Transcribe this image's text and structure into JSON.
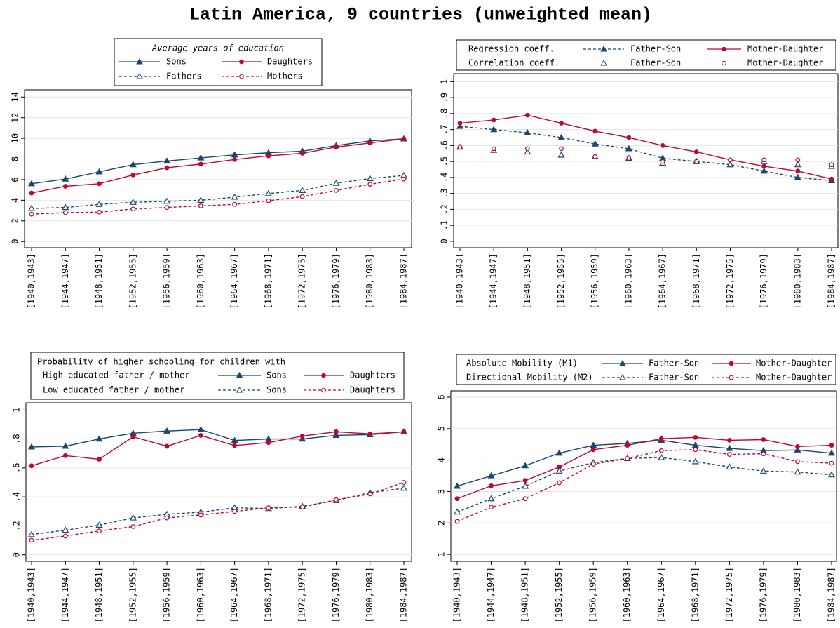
{
  "title": "Latin America, 9 countries (unweighted mean)",
  "chart_data": [
    {
      "type": "line",
      "legend_title": "Average years of education",
      "categories": [
        "[1940,1943]",
        "[1944,1947]",
        "[1948,1951]",
        "[1952,1955]",
        "[1956,1959]",
        "[1960,1963]",
        "[1964,1967]",
        "[1968,1971]",
        "[1972,1975]",
        "[1976,1979]",
        "[1980,1983]",
        "[1984,1987]"
      ],
      "ylim": [
        -0.6,
        14.7
      ],
      "yticks": [
        0,
        2,
        4,
        6,
        8,
        10,
        12,
        14
      ],
      "grid": true,
      "series": [
        {
          "name": "Sons",
          "color": "#1a476f",
          "dash": false,
          "line": true,
          "marker": "triangle",
          "filled": true,
          "values": [
            5.6,
            6.05,
            6.75,
            7.45,
            7.8,
            8.1,
            8.4,
            8.6,
            8.75,
            9.3,
            9.75,
            9.95
          ]
        },
        {
          "name": "Daughters",
          "color": "#c10534",
          "dash": false,
          "line": true,
          "marker": "circle",
          "filled": true,
          "values": [
            4.7,
            5.35,
            5.6,
            6.45,
            7.15,
            7.5,
            7.95,
            8.3,
            8.55,
            9.15,
            9.55,
            9.95
          ]
        },
        {
          "name": "Fathers",
          "color": "#1a476f",
          "dash": true,
          "line": true,
          "marker": "triangle",
          "filled": false,
          "values": [
            3.2,
            3.3,
            3.6,
            3.8,
            3.9,
            4.0,
            4.3,
            4.65,
            4.95,
            5.65,
            6.1,
            6.4
          ]
        },
        {
          "name": "Mothers",
          "color": "#c10534",
          "dash": true,
          "line": true,
          "marker": "circle",
          "filled": false,
          "values": [
            2.65,
            2.8,
            2.85,
            3.15,
            3.3,
            3.45,
            3.6,
            3.95,
            4.35,
            4.95,
            5.55,
            6.05
          ]
        }
      ]
    },
    {
      "type": "line",
      "legend_row_labels": [
        "Regression coeff.",
        "Correlation coeff."
      ],
      "categories": [
        "[1940,1943]",
        "[1944,1947]",
        "[1948,1951]",
        "[1952,1955]",
        "[1956,1959]",
        "[1960,1963]",
        "[1964,1967]",
        "[1968,1971]",
        "[1972,1975]",
        "[1976,1979]",
        "[1980,1983]",
        "[1984,1987]"
      ],
      "ylim": [
        -0.04,
        1.05
      ],
      "yticks": [
        0,
        {
          "value": 0.1,
          "label": ".1"
        },
        {
          "value": 0.2,
          "label": ".2"
        },
        {
          "value": 0.3,
          "label": ".3"
        },
        {
          "value": 0.4,
          "label": ".4"
        },
        {
          "value": 0.5,
          "label": ".5"
        },
        {
          "value": 0.6,
          "label": ".6"
        },
        {
          "value": 0.7,
          "label": ".7"
        },
        {
          "value": 0.8,
          "label": ".8"
        },
        {
          "value": 0.9,
          "label": ".9"
        },
        1
      ],
      "grid": true,
      "series": [
        {
          "name": "Father-Son",
          "color": "#1a476f",
          "dash": true,
          "line": true,
          "marker": "triangle",
          "filled": true,
          "values": [
            0.72,
            0.7,
            0.68,
            0.65,
            0.61,
            0.58,
            0.52,
            0.5,
            0.48,
            0.44,
            0.4,
            0.38
          ]
        },
        {
          "name": "Mother-Daughter",
          "color": "#c10534",
          "dash": false,
          "line": true,
          "marker": "circle",
          "filled": true,
          "values": [
            0.74,
            0.76,
            0.79,
            0.74,
            0.69,
            0.65,
            0.6,
            0.56,
            0.51,
            0.47,
            0.44,
            0.39
          ]
        },
        {
          "name": "Father-Son",
          "color": "#1a476f",
          "dash": false,
          "line": false,
          "marker": "triangle",
          "filled": false,
          "values": [
            0.59,
            0.57,
            0.56,
            0.54,
            0.53,
            0.52,
            0.49,
            0.5,
            0.48,
            0.5,
            0.48,
            0.47
          ]
        },
        {
          "name": "Mother-Daughter",
          "color": "#c10534",
          "dash": false,
          "line": false,
          "marker": "circle",
          "filled": false,
          "values": [
            0.59,
            0.58,
            0.58,
            0.58,
            0.53,
            0.52,
            0.5,
            0.5,
            0.51,
            0.51,
            0.51,
            0.48
          ]
        }
      ]
    },
    {
      "type": "line",
      "legend_title": "Probability of higher schooling for children with",
      "legend_row_labels": [
        "High educated father / mother",
        "Low educated father / mother"
      ],
      "categories": [
        "[1940,1943]",
        "[1944,1947]",
        "[1948,1951]",
        "[1952,1955]",
        "[1956,1959]",
        "[1960,1963]",
        "[1964,1967]",
        "[1968,1971]",
        "[1972,1975]",
        "[1976,1979]",
        "[1980,1983]",
        "[1984,1987]"
      ],
      "ylim": [
        -0.045,
        1.05
      ],
      "yticks": [
        0,
        {
          "value": 0.2,
          "label": ".2"
        },
        {
          "value": 0.4,
          "label": ".4"
        },
        {
          "value": 0.6,
          "label": ".6"
        },
        {
          "value": 0.8,
          "label": ".8"
        },
        1
      ],
      "grid": true,
      "series": [
        {
          "name": "Sons",
          "color": "#1a476f",
          "dash": false,
          "line": true,
          "marker": "triangle",
          "filled": true,
          "values": [
            0.745,
            0.75,
            0.8,
            0.84,
            0.855,
            0.865,
            0.79,
            0.8,
            0.8,
            0.825,
            0.83,
            0.85
          ]
        },
        {
          "name": "Daughters",
          "color": "#c10534",
          "dash": false,
          "line": true,
          "marker": "circle",
          "filled": true,
          "values": [
            0.615,
            0.685,
            0.66,
            0.815,
            0.75,
            0.825,
            0.755,
            0.775,
            0.82,
            0.85,
            0.835,
            0.85
          ]
        },
        {
          "name": "Sons",
          "color": "#1a476f",
          "dash": true,
          "line": true,
          "marker": "triangle",
          "filled": false,
          "values": [
            0.14,
            0.17,
            0.205,
            0.255,
            0.28,
            0.295,
            0.325,
            0.32,
            0.335,
            0.375,
            0.43,
            0.46
          ]
        },
        {
          "name": "Daughters",
          "color": "#c10534",
          "dash": true,
          "line": true,
          "marker": "circle",
          "filled": false,
          "values": [
            0.1,
            0.13,
            0.165,
            0.195,
            0.255,
            0.275,
            0.3,
            0.325,
            0.33,
            0.38,
            0.42,
            0.5
          ]
        }
      ]
    },
    {
      "type": "line",
      "legend_row_labels": [
        "Absolute Mobility (M1)",
        "Directional Mobility (M2)"
      ],
      "categories": [
        "[1940,1943]",
        "[1944,1947]",
        "[1948,1951]",
        "[1952,1955]",
        "[1956,1959]",
        "[1960,1963]",
        "[1964,1967]",
        "[1968,1971]",
        "[1972,1975]",
        "[1976,1979]",
        "[1980,1983]",
        "[1984,1987]"
      ],
      "ylim": [
        0.78,
        6.2
      ],
      "yticks": [
        1,
        2,
        3,
        4,
        5,
        6
      ],
      "grid": true,
      "series": [
        {
          "name": "Father-Son",
          "color": "#1a476f",
          "dash": false,
          "line": true,
          "marker": "triangle",
          "filled": true,
          "values": [
            3.17,
            3.5,
            3.82,
            4.22,
            4.47,
            4.53,
            4.63,
            4.47,
            4.37,
            4.3,
            4.32,
            4.22
          ]
        },
        {
          "name": "Mother-Daughter",
          "color": "#c10534",
          "dash": false,
          "line": true,
          "marker": "circle",
          "filled": true,
          "values": [
            2.77,
            3.18,
            3.35,
            3.78,
            4.33,
            4.47,
            4.68,
            4.72,
            4.63,
            4.65,
            4.43,
            4.47
          ]
        },
        {
          "name": "Father-Son",
          "color": "#1a476f",
          "dash": true,
          "line": true,
          "marker": "triangle",
          "filled": false,
          "values": [
            2.35,
            2.77,
            3.17,
            3.65,
            3.92,
            4.05,
            4.08,
            3.95,
            3.78,
            3.65,
            3.62,
            3.53
          ]
        },
        {
          "name": "Mother-Daughter",
          "color": "#c10534",
          "dash": true,
          "line": true,
          "marker": "circle",
          "filled": false,
          "values": [
            2.05,
            2.5,
            2.77,
            3.28,
            3.87,
            4.05,
            4.3,
            4.33,
            4.18,
            4.2,
            3.95,
            3.9
          ]
        }
      ]
    }
  ]
}
